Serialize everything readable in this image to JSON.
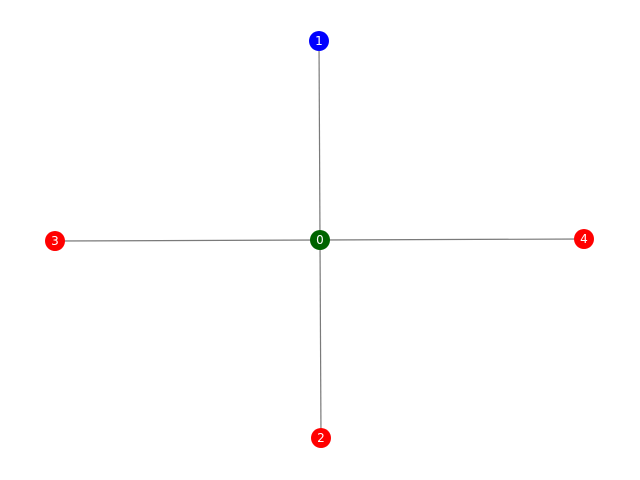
{
  "graph": {
    "nodes": [
      {
        "id": "0",
        "label": "0",
        "color": "#006400"
      },
      {
        "id": "1",
        "label": "1",
        "color": "#0000ff"
      },
      {
        "id": "2",
        "label": "2",
        "color": "#ff0000"
      },
      {
        "id": "3",
        "label": "3",
        "color": "#ff0000"
      },
      {
        "id": "4",
        "label": "4",
        "color": "#ff0000"
      }
    ],
    "edges": [
      {
        "source": "0",
        "target": "1"
      },
      {
        "source": "0",
        "target": "2"
      },
      {
        "source": "0",
        "target": "3"
      },
      {
        "source": "0",
        "target": "4"
      }
    ],
    "edge_color": "#7a7a7a"
  }
}
